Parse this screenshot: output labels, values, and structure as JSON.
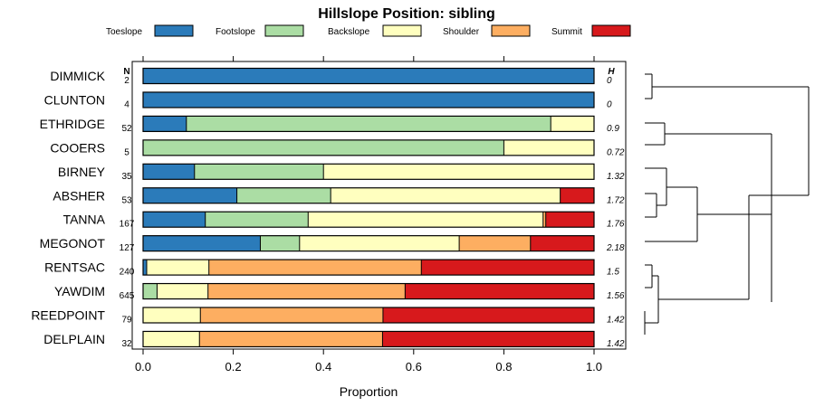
{
  "chart_data": {
    "type": "bar",
    "stacked": true,
    "orientation": "horizontal",
    "title": "Hillslope Position: sibling",
    "xlabel": "Proportion",
    "xlim": [
      0,
      1
    ],
    "xticks": [
      "0.0",
      "0.2",
      "0.4",
      "0.6",
      "0.8",
      "1.0"
    ],
    "xtick_values": [
      0,
      0.2,
      0.4,
      0.6,
      0.8,
      1.0
    ],
    "n_header": "N",
    "h_header": "H",
    "legend_position": "top",
    "series": [
      {
        "name": "Toeslope",
        "color": "#2b7bba"
      },
      {
        "name": "Footslope",
        "color": "#abdda4"
      },
      {
        "name": "Backslope",
        "color": "#ffffbf"
      },
      {
        "name": "Shoulder",
        "color": "#fdae61"
      },
      {
        "name": "Summit",
        "color": "#d7191c"
      }
    ],
    "rows": [
      {
        "name": "DIMMICK",
        "n": "2",
        "h": "0",
        "values": [
          1.0,
          0,
          0,
          0,
          0
        ]
      },
      {
        "name": "CLUNTON",
        "n": "4",
        "h": "0",
        "values": [
          1.0,
          0,
          0,
          0,
          0
        ]
      },
      {
        "name": "ETHRIDGE",
        "n": "52",
        "h": "0.9",
        "values": [
          0.096,
          0.808,
          0.096,
          0,
          0
        ]
      },
      {
        "name": "COOERS",
        "n": "5",
        "h": "0.72",
        "values": [
          0,
          0.8,
          0.2,
          0,
          0
        ]
      },
      {
        "name": "BIRNEY",
        "n": "35",
        "h": "1.32",
        "values": [
          0.114,
          0.286,
          0.6,
          0,
          0
        ]
      },
      {
        "name": "ABSHER",
        "n": "53",
        "h": "1.72",
        "values": [
          0.208,
          0.208,
          0.509,
          0,
          0.075
        ]
      },
      {
        "name": "TANNA",
        "n": "167",
        "h": "1.76",
        "values": [
          0.138,
          0.228,
          0.521,
          0.006,
          0.107
        ]
      },
      {
        "name": "MEGONOT",
        "n": "127",
        "h": "2.18",
        "values": [
          0.26,
          0.087,
          0.354,
          0.158,
          0.141
        ]
      },
      {
        "name": "RENTSAC",
        "n": "240",
        "h": "1.5",
        "values": [
          0.008,
          0,
          0.138,
          0.471,
          0.383
        ]
      },
      {
        "name": "YAWDIM",
        "n": "645",
        "h": "1.56",
        "values": [
          0,
          0.031,
          0.113,
          0.437,
          0.419
        ]
      },
      {
        "name": "REEDPOINT",
        "n": "79",
        "h": "1.42",
        "values": [
          0,
          0,
          0.127,
          0.405,
          0.468
        ]
      },
      {
        "name": "DELPLAIN",
        "n": "32",
        "h": "1.42",
        "values": [
          0,
          0,
          0.125,
          0.406,
          0.469
        ]
      }
    ],
    "dendrogram": true
  }
}
